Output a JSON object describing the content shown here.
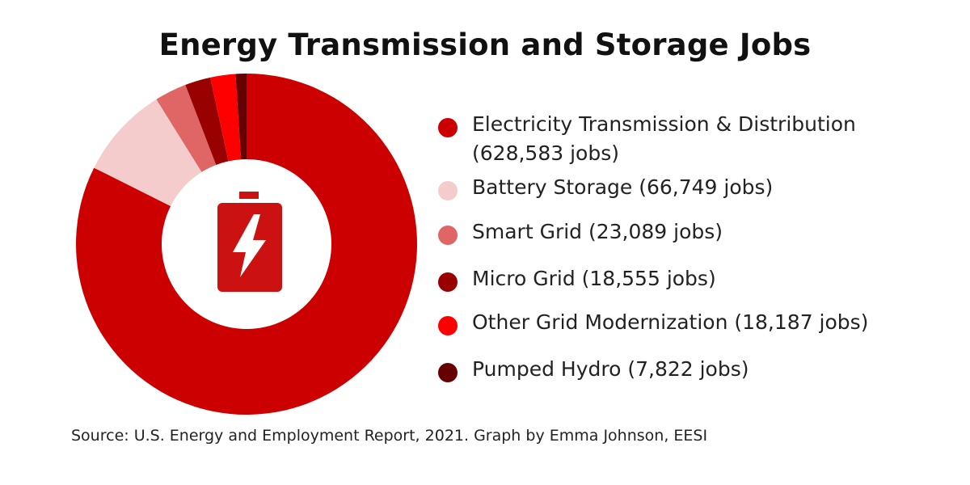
{
  "chart_data": {
    "type": "donut",
    "title": "Energy Transmission and Storage Jobs",
    "legend_position": "right",
    "series": [
      {
        "label": "Electricity Transmission & Distribution",
        "display": "Electricity Transmission & Distribution (628,583 jobs)",
        "value": 628583,
        "color": "#cc0000"
      },
      {
        "label": "Battery Storage",
        "display": "Battery Storage (66,749 jobs)",
        "value": 66749,
        "color": "#f4cccc"
      },
      {
        "label": "Smart Grid",
        "display": "Smart Grid (23,089 jobs)",
        "value": 23089,
        "color": "#e06666"
      },
      {
        "label": "Micro Grid",
        "display": "Micro Grid (18,555 jobs)",
        "value": 18555,
        "color": "#990000"
      },
      {
        "label": "Other Grid Modernization",
        "display": "Other Grid Modernization (18,187 jobs)",
        "value": 18187,
        "color": "#ff0000"
      },
      {
        "label": "Pumped Hydro",
        "display": "Pumped Hydro (7,822 jobs)",
        "value": 7822,
        "color": "#660000"
      }
    ],
    "center_icon": "battery-bolt-icon",
    "source": "Source: U.S. Energy and Employment Report, 2021. Graph by Emma Johnson, EESI"
  }
}
